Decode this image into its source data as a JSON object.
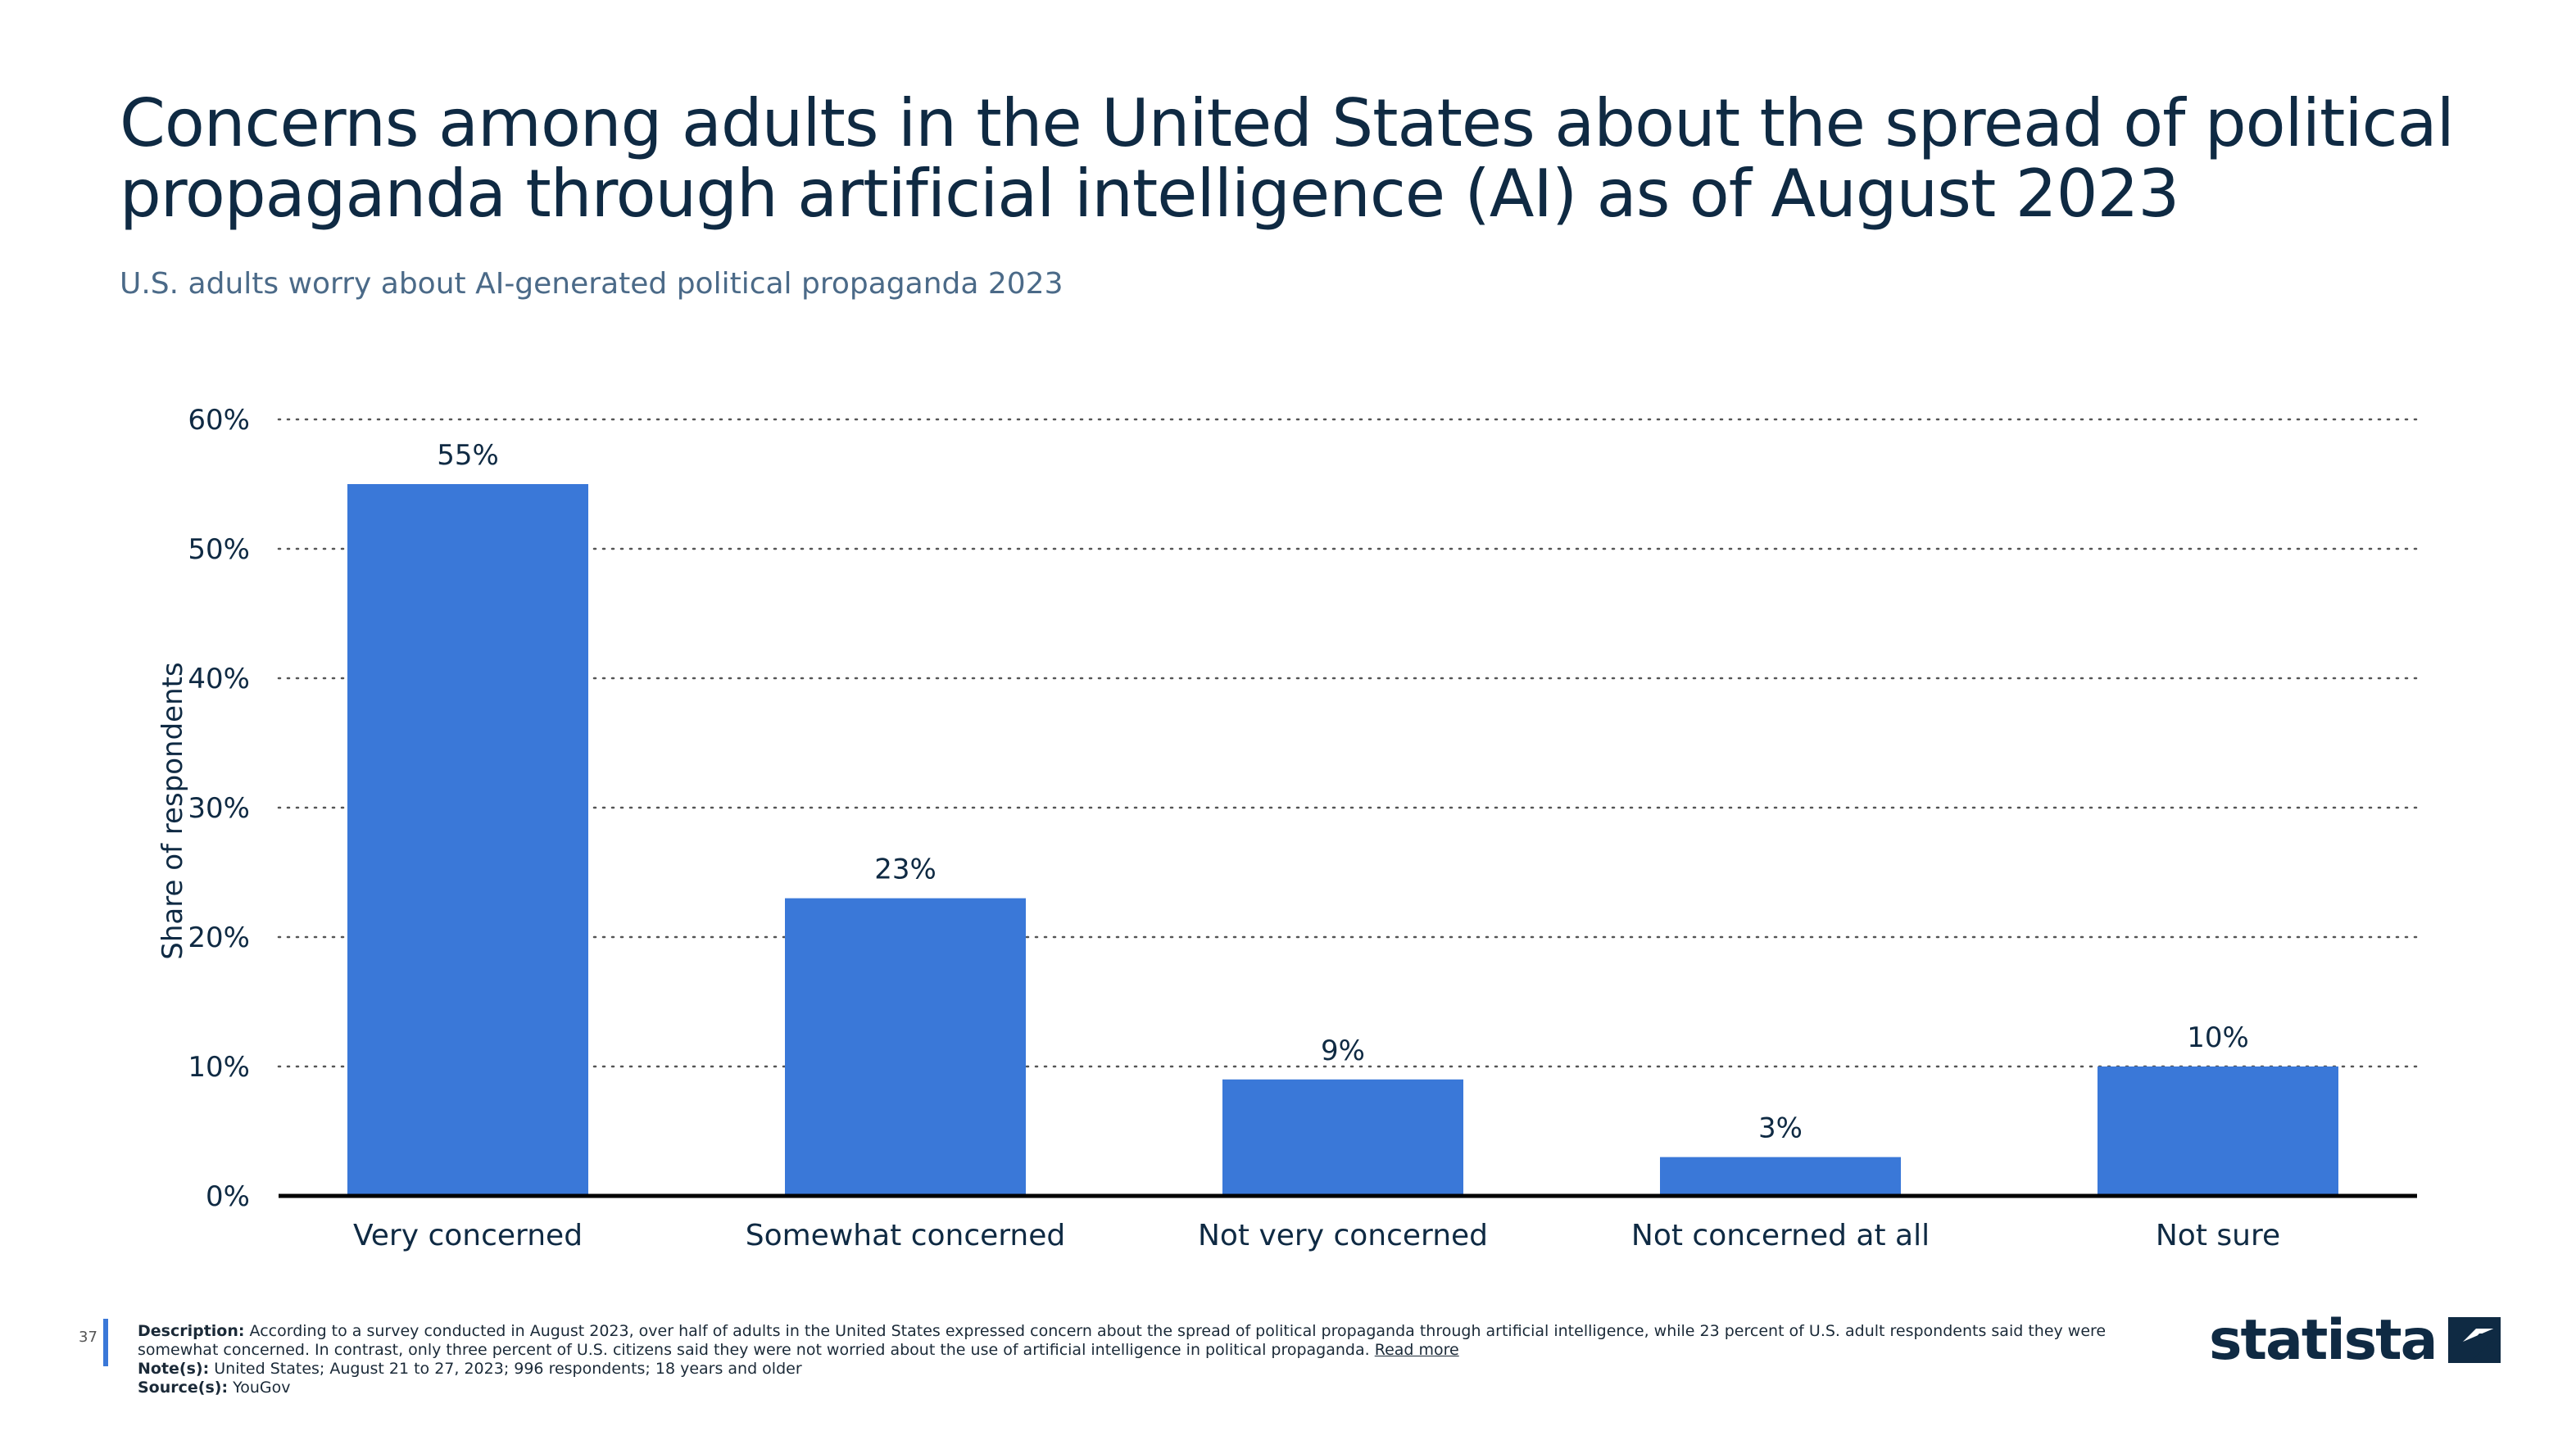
{
  "header": {
    "title": "Concerns among adults in the United States about the spread of political propaganda through artificial intelligence (AI) as of August 2023",
    "subtitle": "U.S. adults worry about AI-generated political propaganda 2023"
  },
  "chart_data": {
    "type": "bar",
    "categories": [
      "Very concerned",
      "Somewhat concerned",
      "Not very concerned",
      "Not concerned at all",
      "Not sure"
    ],
    "values": [
      55,
      23,
      9,
      3,
      10
    ],
    "value_labels": [
      "55%",
      "23%",
      "9%",
      "3%",
      "10%"
    ],
    "ylabel": "Share of respondents",
    "ylim": [
      0,
      60
    ],
    "yticks": [
      0,
      10,
      20,
      30,
      40,
      50,
      60
    ],
    "ytick_labels": [
      "0%",
      "10%",
      "20%",
      "30%",
      "40%",
      "50%",
      "60%"
    ],
    "grid": true,
    "bar_color": "#3a78d8"
  },
  "footer": {
    "page_number": "37",
    "description_label": "Description:",
    "description": "According to a survey conducted in August 2023, over half of adults in the United States expressed concern about the spread of political propaganda through artificial intelligence, while 23 percent of U.S. adult respondents said they were somewhat concerned. In contrast, only three percent of U.S. citizens said they were not worried about the use of artificial intelligence in political propaganda.",
    "read_more": "Read more",
    "notes_label": "Note(s):",
    "notes": "United States; August 21 to 27, 2023; 996 respondents; 18 years and older",
    "source_label": "Source(s):",
    "source": "YouGov"
  },
  "logo": {
    "text": "statista",
    "icon": "statista-logo-icon"
  }
}
